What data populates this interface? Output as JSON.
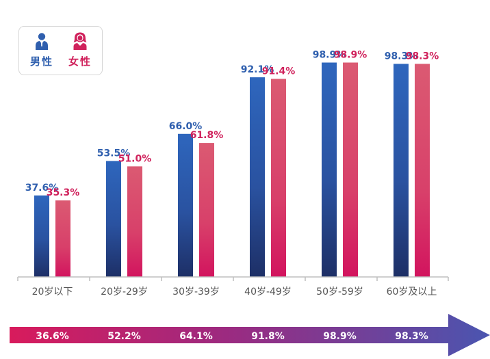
{
  "chart_data": {
    "type": "bar",
    "categories": [
      "20岁以下",
      "20岁-29岁",
      "30岁-39岁",
      "40岁-49岁",
      "50岁-59岁",
      "60岁及以上"
    ],
    "series": [
      {
        "name": "男性",
        "values": [
          37.6,
          53.5,
          66.0,
          92.1,
          98.9,
          98.3
        ],
        "color": "#2f62b7"
      },
      {
        "name": "女性",
        "values": [
          35.3,
          51.0,
          61.8,
          91.4,
          98.9,
          98.3
        ],
        "color": "#d9506a"
      }
    ],
    "value_labels": {
      "male": [
        "37.6%",
        "53.5%",
        "66.0%",
        "92.1%",
        "98.9%",
        "98.3%"
      ],
      "female": [
        "35.3%",
        "51.0%",
        "61.8%",
        "91.4%",
        "98.9%",
        "98.3%"
      ]
    },
    "ylim": [
      0,
      100
    ],
    "grid": false,
    "legend_position": "top-left",
    "totals": {
      "labels": [
        "36.6%",
        "52.2%",
        "64.1%",
        "91.8%",
        "98.9%",
        "98.3%"
      ],
      "values": [
        36.6,
        52.2,
        64.1,
        91.8,
        98.9,
        98.3
      ]
    }
  },
  "colors": {
    "male_label": "#2f5fae",
    "female_label": "#d0225c",
    "arrow_start": "#d81b5c",
    "arrow_end": "#4a55b0"
  },
  "legend": {
    "male_label": "男性",
    "female_label": "女性",
    "male_icon": "male-person-icon",
    "female_icon": "female-person-icon"
  }
}
